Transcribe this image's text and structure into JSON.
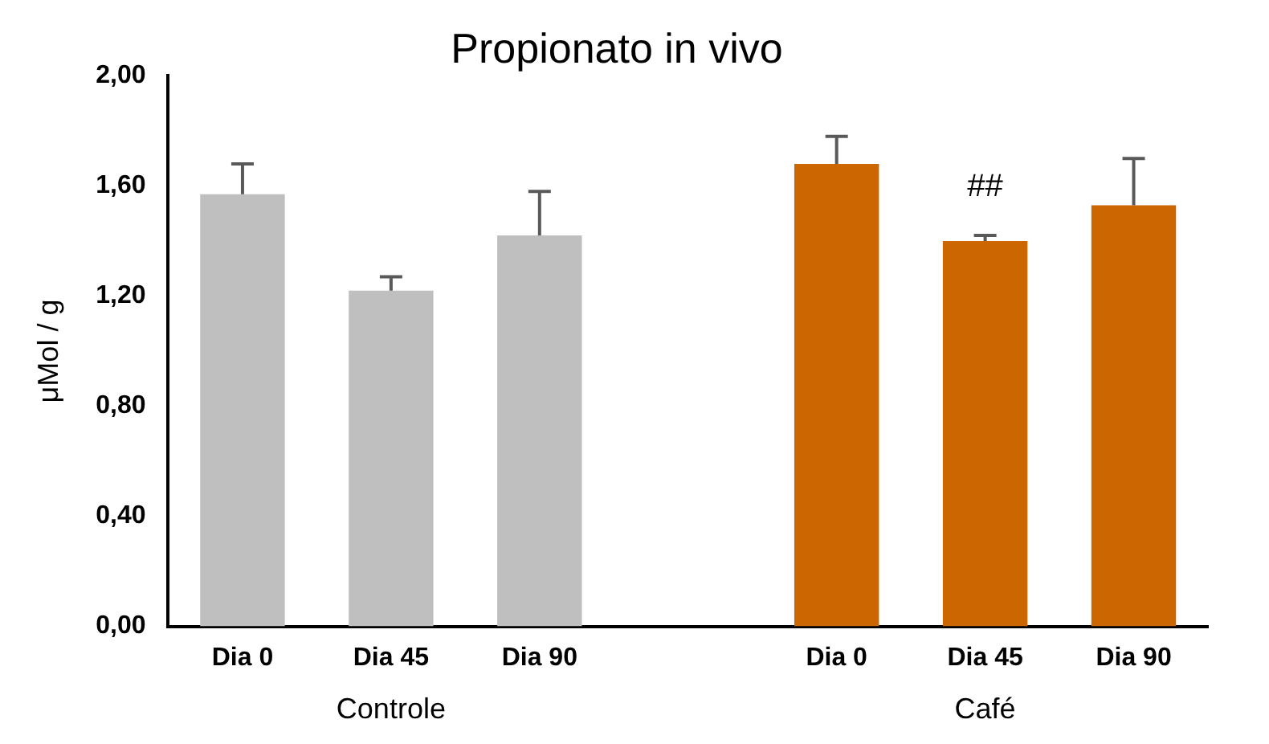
{
  "chart_data": {
    "type": "bar",
    "title": "Propionato in vivo",
    "ylabel": "μMol / g",
    "categories": [
      "Dia 0",
      "Dia 45",
      "Dia 90",
      null,
      "Dia 0",
      "Dia 45",
      "Dia 90"
    ],
    "values": [
      1.57,
      1.22,
      1.42,
      null,
      1.68,
      1.4,
      1.53
    ],
    "colors": [
      "#bfbfbf",
      "#bfbfbf",
      "#bfbfbf",
      "#ffffff",
      "#cc6600",
      "#cc6600",
      "#cc6600"
    ],
    "errors": [
      [
        1.57,
        1.68
      ],
      [
        1.22,
        1.27
      ],
      [
        1.42,
        1.58
      ],
      null,
      [
        1.68,
        1.78
      ],
      [
        1.4,
        1.42
      ],
      [
        1.53,
        1.7
      ]
    ],
    "ylim": [
      0,
      2
    ],
    "yticks": [
      {
        "value": 0,
        "label": "0,00"
      },
      {
        "value": 0.4,
        "label": "0,40"
      },
      {
        "value": 0.8,
        "label": "0,80"
      },
      {
        "value": 1.2,
        "label": "1,20"
      },
      {
        "value": 1.6,
        "label": "1,60"
      },
      {
        "value": 2,
        "label": "2,00"
      }
    ],
    "value_labels": [
      null,
      null,
      null,
      null,
      null,
      "##",
      null
    ],
    "annotations": [
      "Controle",
      "Café"
    ],
    "grid": false,
    "legend": false
  }
}
